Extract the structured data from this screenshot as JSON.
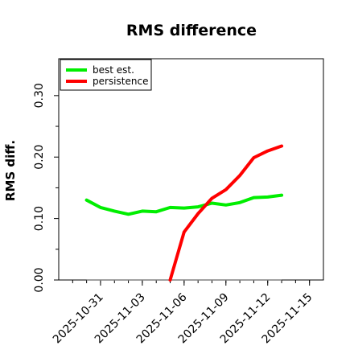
{
  "chart_data": {
    "type": "line",
    "title": "RMS difference",
    "ylabel": "RMS diff.",
    "xlabel": "",
    "ylim": [
      0,
      0.36
    ],
    "xlim": [
      "2025-10-28",
      "2025-11-16"
    ],
    "y_ticks": [
      "0.00",
      "0.10",
      "0.20",
      "0.30"
    ],
    "x_ticks": [
      "2025-10-31",
      "2025-11-03",
      "2025-11-06",
      "2025-11-09",
      "2025-11-12",
      "2025-11-15"
    ],
    "grid": false,
    "legend_position": "top-left",
    "reference_line": {
      "y": 0,
      "x": [
        "2025-10-30",
        "2025-11-13"
      ],
      "color": "#808080"
    },
    "series": [
      {
        "name": "best est.",
        "color": "#00ee00",
        "points": [
          [
            "2025-10-30",
            0.13
          ],
          [
            "2025-10-31",
            0.118
          ],
          [
            "2025-11-01",
            0.112
          ],
          [
            "2025-11-02",
            0.107
          ],
          [
            "2025-11-03",
            0.112
          ],
          [
            "2025-11-04",
            0.111
          ],
          [
            "2025-11-05",
            0.118
          ],
          [
            "2025-11-06",
            0.117
          ],
          [
            "2025-11-07",
            0.119
          ],
          [
            "2025-11-08",
            0.125
          ],
          [
            "2025-11-09",
            0.122
          ],
          [
            "2025-11-10",
            0.126
          ],
          [
            "2025-11-11",
            0.134
          ],
          [
            "2025-11-12",
            0.135
          ],
          [
            "2025-11-13",
            0.138
          ]
        ]
      },
      {
        "name": "persistence",
        "color": "#ff0000",
        "points": [
          [
            "2025-11-05",
            0.0
          ],
          [
            "2025-11-06",
            0.078
          ],
          [
            "2025-11-07",
            0.108
          ],
          [
            "2025-11-08",
            0.133
          ],
          [
            "2025-11-09",
            0.147
          ],
          [
            "2025-11-10",
            0.17
          ],
          [
            "2025-11-11",
            0.199
          ],
          [
            "2025-11-12",
            0.21
          ],
          [
            "2025-11-13",
            0.218
          ]
        ]
      }
    ]
  }
}
